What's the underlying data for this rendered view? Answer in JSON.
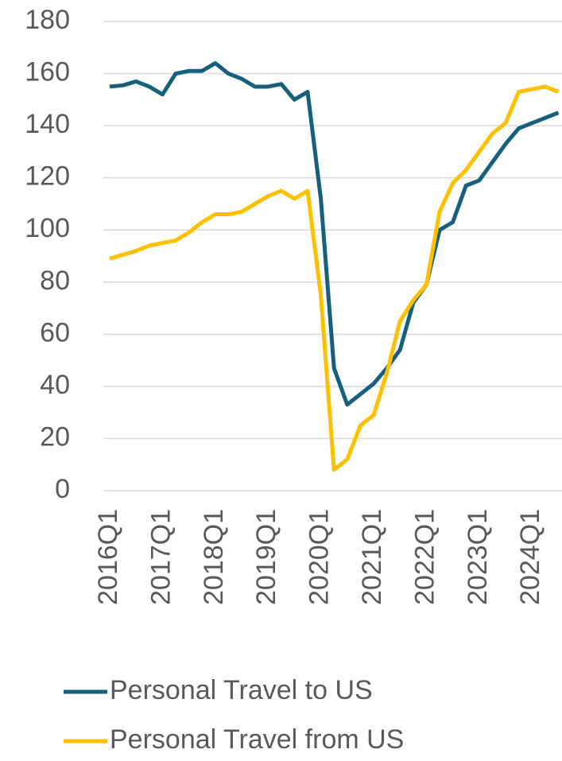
{
  "chart_data": {
    "type": "line",
    "categories": [
      "2016Q1",
      null,
      null,
      null,
      "2017Q1",
      null,
      null,
      null,
      "2018Q1",
      null,
      null,
      null,
      "2019Q1",
      null,
      null,
      null,
      "2020Q1",
      null,
      null,
      null,
      "2021Q1",
      null,
      null,
      null,
      "2022Q1",
      null,
      null,
      null,
      "2023Q1",
      null,
      null,
      null,
      "2024Q1",
      null,
      null
    ],
    "series": [
      {
        "name": "Personal Travel to US",
        "color": "#17607d",
        "values": [
          155,
          155.5,
          157,
          155,
          152,
          160,
          161,
          161,
          164,
          160,
          158,
          155,
          155,
          156,
          150,
          153,
          112,
          47,
          33,
          37,
          41,
          47,
          54,
          72,
          79,
          100,
          103,
          117,
          119,
          126,
          133,
          139,
          141,
          143,
          145
        ]
      },
      {
        "name": "Personal Travel from US",
        "color": "#ffc000",
        "values": [
          89,
          90.5,
          92,
          94,
          95,
          96,
          99,
          103,
          106,
          106,
          107,
          110,
          113,
          115,
          112,
          115,
          75,
          8,
          12,
          25,
          29,
          45,
          65,
          73,
          79,
          107,
          118,
          123,
          130,
          137,
          141,
          153,
          154,
          155,
          153
        ]
      }
    ],
    "ylim": [
      0,
      180
    ],
    "yticks": [
      0,
      20,
      40,
      60,
      80,
      100,
      120,
      140,
      160,
      180
    ],
    "grid": true
  }
}
